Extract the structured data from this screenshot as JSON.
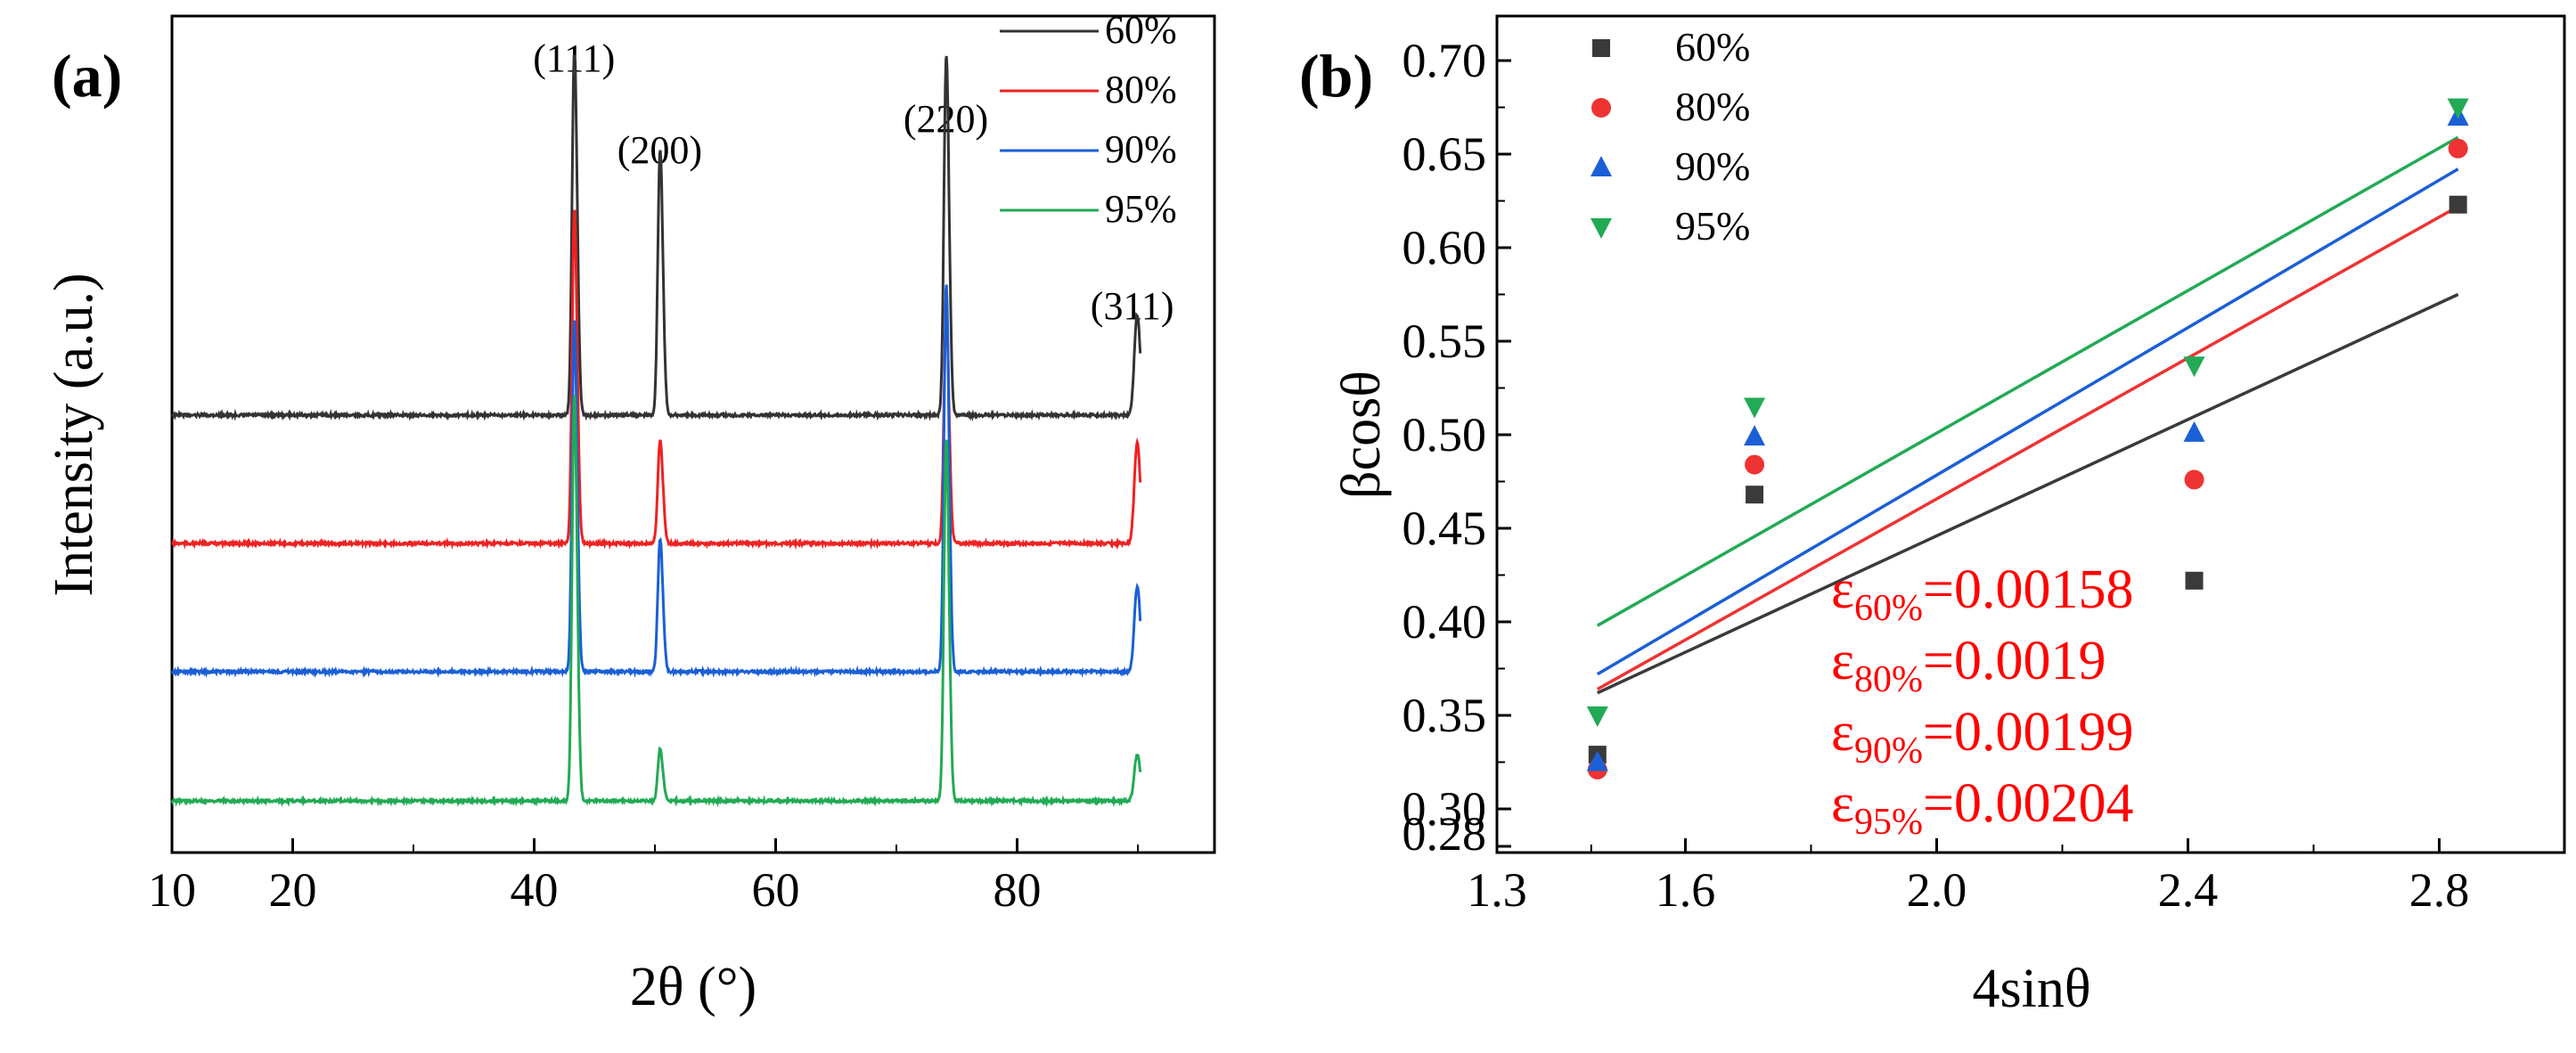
{
  "chart_data": [
    {
      "panel": "(a)",
      "type": "line",
      "xlabel": "2θ (°)",
      "ylabel": "Intensity (a.u.)",
      "xlim": [
        10,
        95
      ],
      "xticks": [
        10,
        20,
        40,
        60,
        80
      ],
      "yticks": false,
      "legend_position": "top-right",
      "peaks": [
        {
          "label": "(111)",
          "two_theta": 43.3
        },
        {
          "label": "(200)",
          "two_theta": 50.4
        },
        {
          "label": "(220)",
          "two_theta": 74.1
        },
        {
          "label": "(311)",
          "two_theta": 89.9
        }
      ],
      "series": [
        {
          "name": "60%",
          "color": "#333333",
          "peak_heights": [
            1.0,
            0.72,
            0.98,
            0.26
          ]
        },
        {
          "name": "80%",
          "color": "#ee2222",
          "peak_heights": [
            0.9,
            0.28,
            0.62,
            0.26
          ]
        },
        {
          "name": "90%",
          "color": "#1a5fd6",
          "peak_heights": [
            0.95,
            0.36,
            1.05,
            0.22
          ]
        },
        {
          "name": "95%",
          "color": "#22aa55",
          "peak_heights": [
            1.1,
            0.14,
            0.98,
            0.12
          ]
        }
      ]
    },
    {
      "panel": "(b)",
      "type": "scatter",
      "xlabel": "4sinθ",
      "ylabel": "βcosθ",
      "xlim": [
        1.3,
        3.0
      ],
      "ylim": [
        0.28,
        0.72
      ],
      "xticks": [
        1.3,
        1.6,
        2.0,
        2.4,
        2.8
      ],
      "xtick_labels": [
        "1.3",
        "1.6",
        "2.0",
        "2.4",
        "2.8"
      ],
      "yticks": [
        0.28,
        0.3,
        0.35,
        0.4,
        0.45,
        0.5,
        0.55,
        0.6,
        0.65,
        0.7
      ],
      "ytick_labels": [
        "0.28",
        "0.30",
        "0.35",
        "0.40",
        "0.45",
        "0.50",
        "0.55",
        "0.60",
        "0.65",
        "0.70"
      ],
      "legend_position": "top-left",
      "series": [
        {
          "name": "60%",
          "color": "#3a3a3a",
          "marker": "square",
          "x": [
            1.46,
            1.71,
            2.41,
            2.83
          ],
          "y": [
            0.329,
            0.468,
            0.422,
            0.623
          ],
          "fit": {
            "x0": 1.46,
            "y0": 0.362,
            "x1": 2.83,
            "y1": 0.575
          }
        },
        {
          "name": "80%",
          "color": "#ee3333",
          "marker": "circle",
          "x": [
            1.46,
            1.71,
            2.41,
            2.83
          ],
          "y": [
            0.321,
            0.484,
            0.476,
            0.653
          ],
          "fit": {
            "x0": 1.46,
            "y0": 0.364,
            "x1": 2.83,
            "y1": 0.622
          }
        },
        {
          "name": "90%",
          "color": "#1a5fd6",
          "marker": "triangle-up",
          "x": [
            1.46,
            1.71,
            2.41,
            2.83
          ],
          "y": [
            0.325,
            0.499,
            0.501,
            0.67
          ],
          "fit": {
            "x0": 1.46,
            "y0": 0.372,
            "x1": 2.83,
            "y1": 0.642
          }
        },
        {
          "name": "95%",
          "color": "#22aa55",
          "marker": "triangle-down",
          "x": [
            1.46,
            1.71,
            2.41,
            2.83
          ],
          "y": [
            0.35,
            0.515,
            0.537,
            0.675
          ],
          "fit": {
            "x0": 1.46,
            "y0": 0.398,
            "x1": 2.83,
            "y1": 0.659
          }
        }
      ],
      "annotations": [
        {
          "symbol": "ε",
          "subscript": "60%",
          "value": "=0.00158"
        },
        {
          "symbol": "ε",
          "subscript": "80%",
          "value": "=0.0019"
        },
        {
          "symbol": "ε",
          "subscript": "90%",
          "value": "=0.00199"
        },
        {
          "symbol": "ε",
          "subscript": "95%",
          "value": "=0.00204"
        }
      ],
      "annotation_color": "#ff0000"
    }
  ]
}
